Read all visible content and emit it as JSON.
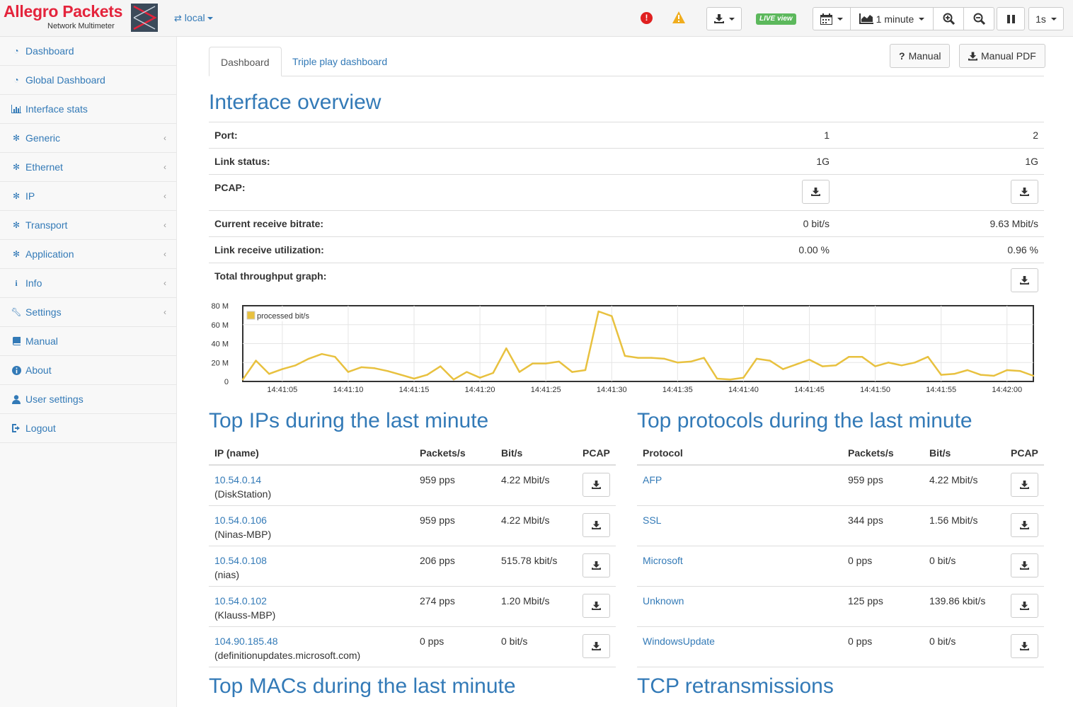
{
  "brand": {
    "name": "Allegro Packets",
    "subtitle": "Network Multimeter"
  },
  "topbar": {
    "network": "local",
    "alert_error": "!",
    "live_label": "LIVE view",
    "time_range": "1 minute",
    "interval": "1s"
  },
  "sidebar": {
    "items": [
      {
        "label": "Dashboard",
        "icon": "dashboard-icon"
      },
      {
        "label": "Global Dashboard",
        "icon": "dashboard-icon"
      },
      {
        "label": "Interface stats",
        "icon": "bar-chart-icon"
      },
      {
        "label": "Generic",
        "icon": "gear-icon"
      },
      {
        "label": "Ethernet",
        "icon": "gear-icon"
      },
      {
        "label": "IP",
        "icon": "gear-icon"
      },
      {
        "label": "Transport",
        "icon": "gear-icon"
      },
      {
        "label": "Application",
        "icon": "gear-icon"
      },
      {
        "label": "Info",
        "icon": "info-icon"
      },
      {
        "label": "Settings",
        "icon": "wrench-icon"
      },
      {
        "label": "Manual",
        "icon": "book-icon"
      },
      {
        "label": "About",
        "icon": "info-circle-icon"
      },
      {
        "label": "User settings",
        "icon": "user-icon"
      },
      {
        "label": "Logout",
        "icon": "logout-icon"
      }
    ]
  },
  "tabs": [
    "Dashboard",
    "Triple play dashboard"
  ],
  "buttons": {
    "manual": "Manual",
    "manual_pdf": "Manual PDF",
    "manual_prefix": "?"
  },
  "overview": {
    "title": "Interface overview",
    "port_label": "Port:",
    "port_1": "1",
    "port_2": "2",
    "link_label": "Link status:",
    "link_1": "1G",
    "link_2": "1G",
    "pcap_label": "PCAP:",
    "bitrate_label": "Current receive bitrate:",
    "bitrate_1": "0 bit/s",
    "bitrate_2": "9.63 Mbit/s",
    "util_label": "Link receive utilization:",
    "util_1": "0.00 %",
    "util_2": "0.96 %",
    "graph_label": "Total throughput graph:"
  },
  "chart_data": {
    "type": "line",
    "series": [
      {
        "name": "processed bit/s",
        "color": "#e8c13f",
        "values": [
          2,
          22,
          8,
          13,
          17,
          24,
          29,
          26,
          10,
          15,
          14,
          11,
          7,
          3,
          7,
          16,
          2,
          10,
          4,
          9,
          35,
          10,
          19,
          19,
          21,
          10,
          12,
          74,
          69,
          27,
          25,
          25,
          24,
          20,
          21,
          25,
          3,
          2,
          4,
          24,
          22,
          13,
          18,
          23,
          16,
          17,
          26,
          26,
          16,
          20,
          17,
          20,
          26,
          7,
          8,
          12,
          7,
          6,
          12,
          11,
          6
        ],
        "x_start": "14:41:02"
      }
    ],
    "xticks": [
      "14:41:05",
      "14:41:10",
      "14:41:15",
      "14:41:20",
      "14:41:25",
      "14:41:30",
      "14:41:35",
      "14:41:40",
      "14:41:45",
      "14:41:50",
      "14:41:55",
      "14:42:00"
    ],
    "yticks": [
      "0",
      "20 M",
      "40 M",
      "60 M",
      "80 M"
    ],
    "ylim": [
      0,
      80
    ],
    "grid": true,
    "legend": "top-left"
  },
  "top_ips": {
    "title": "Top IPs during the last minute",
    "headers": [
      "IP (name)",
      "Packets/s",
      "Bit/s",
      "PCAP"
    ],
    "rows": [
      {
        "ip": "10.54.0.14",
        "name": "(DiskStation)",
        "pps": "959 pps",
        "bits": "4.22 Mbit/s"
      },
      {
        "ip": "10.54.0.106",
        "name": "(Ninas-MBP)",
        "pps": "959 pps",
        "bits": "4.22 Mbit/s"
      },
      {
        "ip": "10.54.0.108",
        "name": "(nias)",
        "pps": "206 pps",
        "bits": "515.78 kbit/s"
      },
      {
        "ip": "10.54.0.102",
        "name": "(Klauss-MBP)",
        "pps": "274 pps",
        "bits": "1.20 Mbit/s"
      },
      {
        "ip": "104.90.185.48",
        "name": "(definitionupdates.microsoft.com)",
        "pps": "0 pps",
        "bits": "0 bit/s"
      }
    ]
  },
  "top_protocols": {
    "title": "Top protocols during the last minute",
    "headers": [
      "Protocol",
      "Packets/s",
      "Bit/s",
      "PCAP"
    ],
    "rows": [
      {
        "name": "AFP",
        "pps": "959 pps",
        "bits": "4.22 Mbit/s"
      },
      {
        "name": "SSL",
        "pps": "344 pps",
        "bits": "1.56 Mbit/s"
      },
      {
        "name": "Microsoft",
        "pps": "0 pps",
        "bits": "0 bit/s"
      },
      {
        "name": "Unknown",
        "pps": "125 pps",
        "bits": "139.86 kbit/s"
      },
      {
        "name": "WindowsUpdate",
        "pps": "0 pps",
        "bits": "0 bit/s"
      }
    ]
  },
  "sections": {
    "macs_title": "Top MACs during the last minute",
    "tcp_title": "TCP retransmissions"
  }
}
